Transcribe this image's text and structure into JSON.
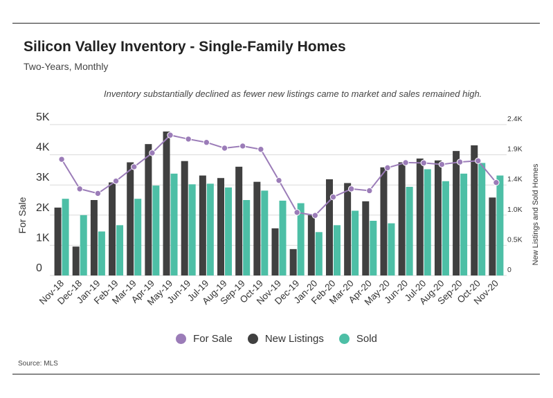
{
  "header": {
    "title": "Silicon Valley Inventory - Single-Family Homes",
    "subtitle": "Two-Years, Monthly",
    "annotation": "Inventory substantially declined as fewer new listings came to market and sales remained high."
  },
  "footer": {
    "source": "Source:  MLS"
  },
  "colors": {
    "for_sale": "#9b7cb8",
    "new_listings": "#404040",
    "sold": "#4dbfa6",
    "grid": "#d9d9d9"
  },
  "chart_data": {
    "type": "bar",
    "categories": [
      "Nov-18",
      "Dec-18",
      "Jan-19",
      "Feb-19",
      "Mar-19",
      "Apr-19",
      "May-19",
      "Jun-19",
      "Jul-19",
      "Aug-19",
      "Sep-19",
      "Oct-19",
      "Nov-19",
      "Dec-19",
      "Jan-20",
      "Feb-20",
      "Mar-20",
      "Apr-20",
      "May-20",
      "Jun-20",
      "Jul-20",
      "Aug-20",
      "Sep-20",
      "Oct-20",
      "Nov-20"
    ],
    "left_axis": {
      "label": "For Sale",
      "ticks": [
        "0",
        "1K",
        "2K",
        "3K",
        "4K",
        "5K"
      ],
      "ylim": [
        0,
        5000
      ]
    },
    "right_axis": {
      "label": "New Listings and Sold Homes",
      "ticks": [
        "0",
        "0.5K",
        "1.0K",
        "1.4K",
        "1.9K",
        "2.4K"
      ],
      "ylim": [
        0,
        2400
      ]
    },
    "grid": true,
    "legend_position": "bottom",
    "series": [
      {
        "name": "For Sale",
        "type": "line",
        "axis": "left",
        "values": [
          3850,
          2870,
          2720,
          3130,
          3600,
          4060,
          4650,
          4520,
          4410,
          4220,
          4290,
          4180,
          3150,
          2090,
          1990,
          2600,
          2870,
          2810,
          3570,
          3740,
          3730,
          3680,
          3760,
          3800,
          3080
        ]
      },
      {
        "name": "New Listings",
        "type": "bar",
        "axis": "right",
        "values": [
          1080,
          460,
          1200,
          1480,
          1800,
          2090,
          2290,
          1820,
          1590,
          1550,
          1730,
          1490,
          750,
          420,
          960,
          1530,
          1470,
          1180,
          1720,
          1800,
          1860,
          1830,
          1980,
          2070,
          1240
        ]
      },
      {
        "name": "Sold",
        "type": "bar",
        "axis": "right",
        "values": [
          1220,
          960,
          700,
          800,
          1220,
          1430,
          1620,
          1450,
          1460,
          1400,
          1200,
          1350,
          1190,
          1150,
          690,
          800,
          1030,
          870,
          830,
          1410,
          1690,
          1500,
          1620,
          1790,
          1590
        ]
      }
    ]
  }
}
